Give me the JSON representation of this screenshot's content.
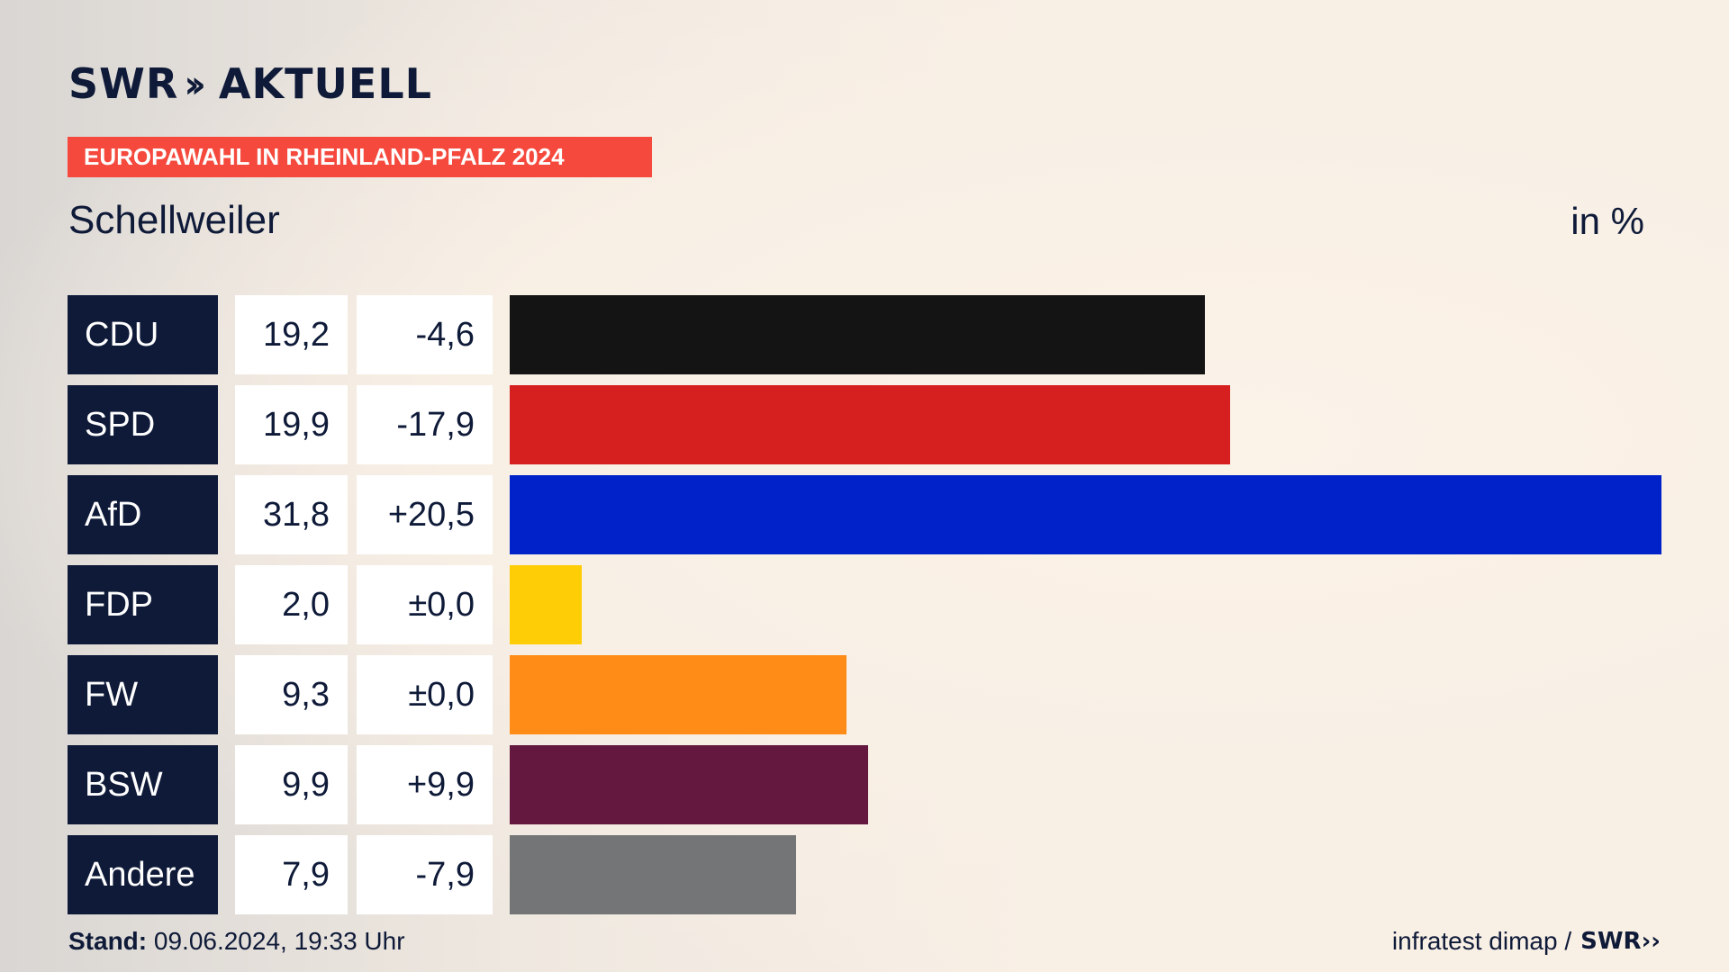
{
  "brand": {
    "logo_text": "SWR",
    "logo_suffix": "AKTUELL"
  },
  "banner": "EUROPAWAHL IN RHEINLAND-PFALZ 2024",
  "location": "Schellweiler",
  "unit": "in %",
  "footer": {
    "stand_label": "Stand:",
    "stand_value": "09.06.2024, 19:33 Uhr",
    "source": "infratest dimap /",
    "source_logo": "SWR"
  },
  "chart_data": {
    "type": "bar",
    "orientation": "horizontal",
    "title": "Europawahl in Rheinland-Pfalz 2024 – Schellweiler",
    "unit": "%",
    "categories": [
      "CDU",
      "SPD",
      "AfD",
      "FDP",
      "FW",
      "BSW",
      "Andere"
    ],
    "values": [
      19.2,
      19.9,
      31.8,
      2.0,
      9.3,
      9.9,
      7.9
    ],
    "value_labels": [
      "19,2",
      "19,9",
      "31,8",
      "2,0",
      "9,3",
      "9,9",
      "7,9"
    ],
    "diff_labels": [
      "-4,6",
      "-17,9",
      "+20,5",
      "±0,0",
      "±0,0",
      "+9,9",
      "-7,9"
    ],
    "colors": [
      "#141414",
      "#d61f1f",
      "#0022c8",
      "#ffcd06",
      "#ff8c16",
      "#65183f",
      "#747576"
    ],
    "xlim": [
      0,
      31.8
    ]
  }
}
